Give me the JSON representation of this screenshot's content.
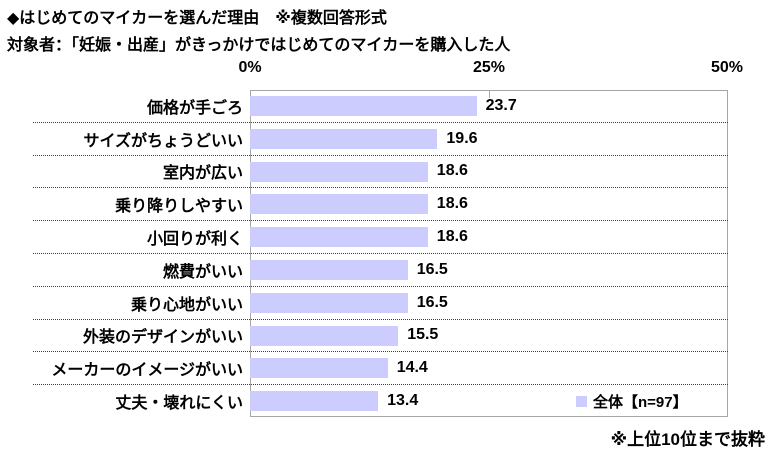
{
  "title": "◆はじめてのマイカーを選んだ理由　※複数回答形式",
  "subtitle": "対象者：「妊娠・出産」がきっかけではじめてのマイカーを購入した人",
  "footnote": "※上位10位まで抜粋",
  "legend": {
    "label": "全体【n=97】",
    "color": "#ccccff"
  },
  "axis": {
    "ticks": [
      "0%",
      "25%",
      "50%"
    ]
  },
  "colors": {
    "bar_fill": "#ccccff",
    "plot_border": "#a6a6a6"
  },
  "chart_data": {
    "type": "bar",
    "orientation": "horizontal",
    "title": "はじめてのマイカーを選んだ理由（複数回答形式）",
    "categories": [
      "価格が手ごろ",
      "サイズがちょうどいい",
      "室内が広い",
      "乗り降りしやすい",
      "小回りが利く",
      "燃費がいい",
      "乗り心地がいい",
      "外装のデザインがいい",
      "メーカーのイメージがいい",
      "丈夫・壊れにくい"
    ],
    "series": [
      {
        "name": "全体【n=97】",
        "values": [
          23.7,
          19.6,
          18.6,
          18.6,
          18.6,
          16.5,
          16.5,
          15.5,
          14.4,
          13.4
        ]
      }
    ],
    "xlabel": "",
    "ylabel": "",
    "xlim": [
      0,
      50
    ],
    "x_ticks": [
      0,
      25,
      50
    ],
    "grid": false,
    "legend_position": "bottom-right-inside",
    "bar_color": "#ccccff"
  }
}
